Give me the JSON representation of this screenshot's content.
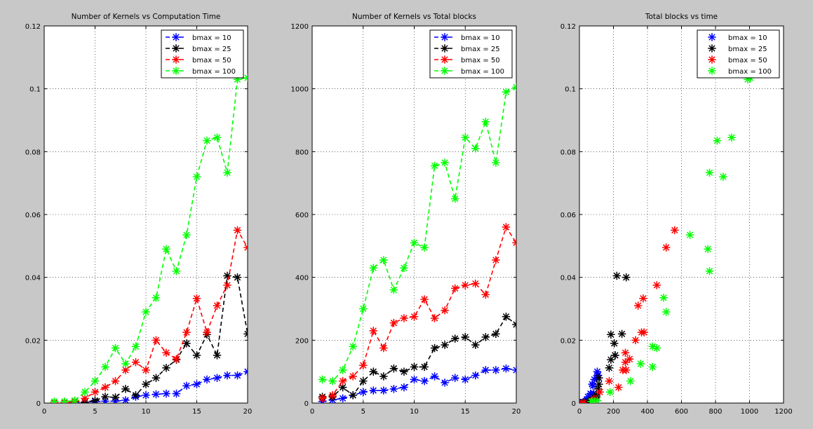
{
  "chart_data": [
    {
      "type": "line",
      "title": "Number of Kernels vs Computation Time",
      "xlabel": "",
      "ylabel": "",
      "xlim": [
        0,
        20
      ],
      "ylim": [
        0,
        0.12
      ],
      "xticks": [
        0,
        5,
        10,
        15,
        20
      ],
      "yticks": [
        0,
        0.02,
        0.04,
        0.06,
        0.08,
        0.1,
        0.12
      ],
      "ytick_labels": [
        "0",
        "0.02",
        "0.04",
        "0.06",
        "0.08",
        "0.1",
        "0.12"
      ],
      "grid": true,
      "legend_position": "top-right",
      "marker": "*",
      "line_style": "dashed",
      "x": [
        1,
        2,
        3,
        4,
        5,
        6,
        7,
        8,
        9,
        10,
        11,
        12,
        13,
        14,
        15,
        16,
        17,
        18,
        19,
        20
      ],
      "series": [
        {
          "name": "bmax = 10",
          "color": "#0000ff",
          "values": [
            0,
            0,
            0,
            0.0003,
            0.0005,
            0.0006,
            0.0006,
            0.0009,
            0.002,
            0.0025,
            0.0028,
            0.003,
            0.003,
            0.0055,
            0.006,
            0.0075,
            0.008,
            0.0088,
            0.0088,
            0.01
          ]
        },
        {
          "name": "bmax = 25",
          "color": "#000000",
          "values": [
            0,
            0,
            0.0005,
            0.0003,
            0.0008,
            0.002,
            0.0018,
            0.0045,
            0.0025,
            0.006,
            0.008,
            0.0112,
            0.0138,
            0.019,
            0.0152,
            0.0218,
            0.0152,
            0.0405,
            0.04,
            0.022
          ]
        },
        {
          "name": "bmax = 50",
          "color": "#ff0000",
          "values": [
            0,
            0,
            0.0005,
            0.0015,
            0.0035,
            0.005,
            0.007,
            0.0105,
            0.013,
            0.0105,
            0.02,
            0.016,
            0.014,
            0.0225,
            0.0333,
            0.0225,
            0.031,
            0.0375,
            0.055,
            0.0495
          ]
        },
        {
          "name": "bmax = 100",
          "color": "#00ff00",
          "values": [
            0.0005,
            0.0005,
            0.0008,
            0.0035,
            0.007,
            0.0115,
            0.0175,
            0.0125,
            0.018,
            0.029,
            0.0335,
            0.049,
            0.042,
            0.0535,
            0.072,
            0.0835,
            0.0845,
            0.0733,
            0.103,
            0.1035
          ]
        }
      ]
    },
    {
      "type": "line",
      "title": "Number of Kernels vs  Total blocks",
      "xlabel": "",
      "ylabel": "",
      "xlim": [
        0,
        20
      ],
      "ylim": [
        0,
        1200
      ],
      "xticks": [
        0,
        5,
        10,
        15,
        20
      ],
      "yticks": [
        0,
        200,
        400,
        600,
        800,
        1000,
        1200
      ],
      "ytick_labels": [
        "0",
        "200",
        "400",
        "600",
        "800",
        "1000",
        "1200"
      ],
      "grid": true,
      "legend_position": "top-right",
      "marker": "*",
      "line_style": "dashed",
      "x": [
        1,
        2,
        3,
        4,
        5,
        6,
        7,
        8,
        9,
        10,
        11,
        12,
        13,
        14,
        15,
        16,
        17,
        18,
        19,
        20
      ],
      "series": [
        {
          "name": "bmax = 10",
          "color": "#0000ff",
          "values": [
            5,
            10,
            15,
            25,
            35,
            40,
            40,
            45,
            50,
            75,
            70,
            85,
            65,
            80,
            75,
            88,
            105,
            105,
            110,
            105
          ]
        },
        {
          "name": "bmax = 25",
          "color": "#000000",
          "values": [
            20,
            20,
            50,
            25,
            70,
            100,
            85,
            110,
            100,
            115,
            115,
            175,
            185,
            205,
            210,
            185,
            210,
            220,
            275,
            250
          ]
        },
        {
          "name": "bmax = 50",
          "color": "#ff0000",
          "values": [
            15,
            25,
            70,
            85,
            120,
            230,
            175,
            255,
            270,
            275,
            330,
            270,
            295,
            365,
            375,
            380,
            345,
            455,
            560,
            510
          ]
        },
        {
          "name": "bmax = 100",
          "color": "#00ff00",
          "values": [
            75,
            70,
            105,
            180,
            300,
            430,
            455,
            360,
            430,
            510,
            495,
            755,
            765,
            650,
            845,
            810,
            895,
            765,
            990,
            1005
          ]
        }
      ]
    },
    {
      "type": "scatter",
      "title": "Total blocks vs time",
      "xlabel": "",
      "ylabel": "",
      "xlim": [
        0,
        1200
      ],
      "ylim": [
        0,
        0.12
      ],
      "xticks": [
        0,
        200,
        400,
        600,
        800,
        1000,
        1200
      ],
      "yticks": [
        0,
        0.02,
        0.04,
        0.06,
        0.08,
        0.1,
        0.12
      ],
      "ytick_labels": [
        "0",
        "0.02",
        "0.04",
        "0.06",
        "0.08",
        "0.1",
        "0.12"
      ],
      "grid": true,
      "legend_position": "top-right",
      "marker": "*",
      "series": [
        {
          "name": "bmax = 10",
          "color": "#0000ff",
          "points": [
            [
              5,
              0
            ],
            [
              10,
              0
            ],
            [
              15,
              0
            ],
            [
              25,
              0.0003
            ],
            [
              35,
              0.0005
            ],
            [
              40,
              0.0006
            ],
            [
              40,
              0.0006
            ],
            [
              45,
              0.0009
            ],
            [
              50,
              0.002
            ],
            [
              75,
              0.0025
            ],
            [
              70,
              0.0028
            ],
            [
              85,
              0.003
            ],
            [
              65,
              0.003
            ],
            [
              80,
              0.0055
            ],
            [
              75,
              0.006
            ],
            [
              88,
              0.0075
            ],
            [
              105,
              0.008
            ],
            [
              105,
              0.0088
            ],
            [
              110,
              0.0088
            ],
            [
              105,
              0.01
            ]
          ]
        },
        {
          "name": "bmax = 25",
          "color": "#000000",
          "points": [
            [
              20,
              0
            ],
            [
              20,
              0
            ],
            [
              50,
              0.0005
            ],
            [
              25,
              0.0003
            ],
            [
              70,
              0.0008
            ],
            [
              100,
              0.002
            ],
            [
              85,
              0.0018
            ],
            [
              110,
              0.0045
            ],
            [
              100,
              0.0025
            ],
            [
              115,
              0.006
            ],
            [
              115,
              0.008
            ],
            [
              175,
              0.0112
            ],
            [
              185,
              0.0138
            ],
            [
              205,
              0.019
            ],
            [
              210,
              0.0152
            ],
            [
              185,
              0.0218
            ],
            [
              210,
              0.0152
            ],
            [
              220,
              0.0405
            ],
            [
              275,
              0.04
            ],
            [
              250,
              0.022
            ]
          ]
        },
        {
          "name": "bmax = 50",
          "color": "#ff0000",
          "points": [
            [
              15,
              0
            ],
            [
              25,
              0
            ],
            [
              70,
              0.0005
            ],
            [
              85,
              0.0015
            ],
            [
              120,
              0.0035
            ],
            [
              230,
              0.005
            ],
            [
              175,
              0.007
            ],
            [
              255,
              0.0105
            ],
            [
              270,
              0.013
            ],
            [
              275,
              0.0105
            ],
            [
              330,
              0.02
            ],
            [
              270,
              0.016
            ],
            [
              295,
              0.014
            ],
            [
              365,
              0.0225
            ],
            [
              375,
              0.0333
            ],
            [
              380,
              0.0225
            ],
            [
              345,
              0.031
            ],
            [
              455,
              0.0375
            ],
            [
              560,
              0.055
            ],
            [
              510,
              0.0495
            ]
          ]
        },
        {
          "name": "bmax = 100",
          "color": "#00ff00",
          "points": [
            [
              75,
              0.0005
            ],
            [
              70,
              0.0005
            ],
            [
              105,
              0.0008
            ],
            [
              180,
              0.0035
            ],
            [
              300,
              0.007
            ],
            [
              430,
              0.0115
            ],
            [
              455,
              0.0175
            ],
            [
              360,
              0.0125
            ],
            [
              430,
              0.018
            ],
            [
              510,
              0.029
            ],
            [
              495,
              0.0335
            ],
            [
              755,
              0.049
            ],
            [
              765,
              0.042
            ],
            [
              650,
              0.0535
            ],
            [
              845,
              0.072
            ],
            [
              810,
              0.0835
            ],
            [
              895,
              0.0845
            ],
            [
              765,
              0.0733
            ],
            [
              990,
              0.103
            ],
            [
              1005,
              0.1035
            ]
          ]
        }
      ]
    }
  ]
}
